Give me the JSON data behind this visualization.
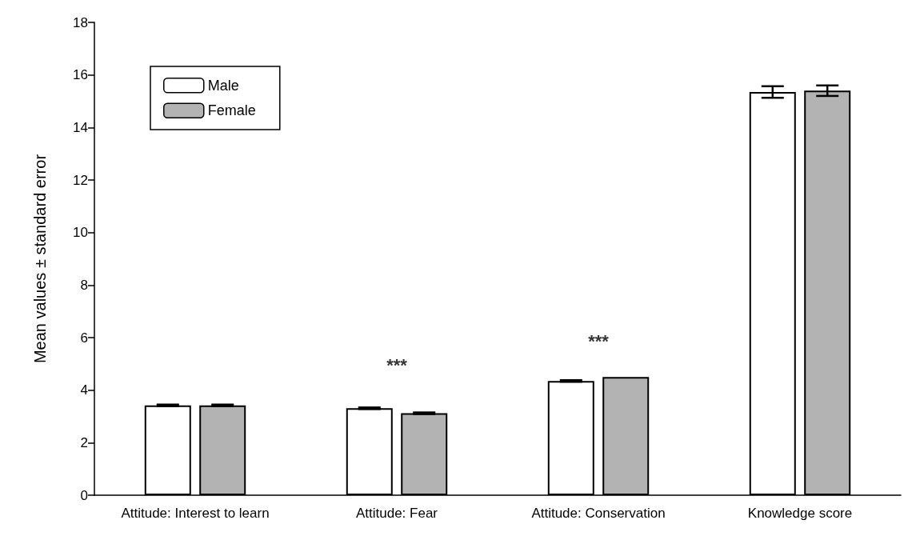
{
  "chart_data": {
    "type": "bar",
    "ylabel": "Mean values ± standard error",
    "categories": [
      "Attitude: Interest to learn",
      "Attitude: Fear",
      "Attitude: Conservation",
      "Knowledge score"
    ],
    "series": [
      {
        "name": "Male",
        "color": "#ffffff",
        "values": [
          3.42,
          3.31,
          4.35,
          15.35
        ],
        "errors": [
          0.03,
          0.03,
          0.03,
          0.22
        ]
      },
      {
        "name": "Female",
        "color": "#b3b3b3",
        "values": [
          3.42,
          3.12,
          4.5,
          15.4
        ],
        "errors": [
          0.03,
          0.03,
          null,
          0.2
        ]
      }
    ],
    "ylim": [
      0,
      18
    ],
    "yticks": [
      0,
      2,
      4,
      6,
      8,
      10,
      12,
      14,
      16,
      18
    ],
    "grid": false,
    "legend": "top left",
    "annotations": [
      "***",
      "***"
    ]
  }
}
